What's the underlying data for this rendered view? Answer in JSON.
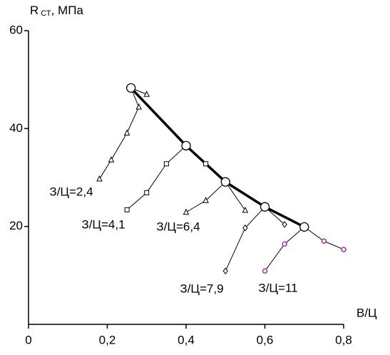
{
  "chart_data": {
    "type": "line",
    "ylabel": "R",
    "ylabel_sub": "СТ",
    "ylabel_unit": ", МПа",
    "xlabel": "В/Ц",
    "xlim": [
      0,
      0.8
    ],
    "ylim": [
      0,
      60
    ],
    "xticks": [
      0,
      {
        "value": 0.2,
        "label": "0,2"
      },
      {
        "value": 0.4,
        "label": "0,4"
      },
      {
        "value": 0.6,
        "label": "0,6"
      },
      {
        "value": 0.8,
        "label": "0,8"
      }
    ],
    "yticks": [
      20,
      40,
      60
    ],
    "series": [
      {
        "name": "З/Ц=2,4",
        "marker": "triangle",
        "color": "#000000",
        "x": [
          0.18,
          0.21,
          0.25,
          0.28,
          0.26,
          0.3
        ],
        "values": [
          29.7,
          33.6,
          39.1,
          44.4,
          48.3,
          47
        ]
      },
      {
        "name": "З/Ц=4,1",
        "marker": "square",
        "color": "#000000",
        "x": [
          0.25,
          0.3,
          0.35,
          0.4,
          0.45
        ],
        "values": [
          23.4,
          26.9,
          32.8,
          36.5,
          32.8
        ]
      },
      {
        "name": "З/Ц=6,4",
        "marker": "triangle",
        "color": "#000000",
        "x": [
          0.4,
          0.45,
          0.5,
          0.55
        ],
        "values": [
          22.9,
          25.3,
          29.1,
          23.3
        ]
      },
      {
        "name": "З/Ц=7,9",
        "marker": "diamond",
        "color": "#000000",
        "x": [
          0.5,
          0.55,
          0.6,
          0.65
        ],
        "values": [
          10.9,
          19.7,
          24,
          20.4
        ]
      },
      {
        "name": "З/Ц=11",
        "marker": "circle",
        "color": "#000000",
        "marker_color": "#a0309a",
        "x": [
          0.6,
          0.65,
          0.7,
          0.75,
          0.8
        ],
        "values": [
          10.9,
          16.4,
          19.9,
          17,
          15.3
        ]
      },
      {
        "marker": "big-circle",
        "color": "#000000",
        "x": [
          0.26,
          0.4,
          0.5,
          0.6,
          0.7
        ],
        "values": [
          48.3,
          36.5,
          29.1,
          24,
          19.9
        ]
      }
    ]
  }
}
